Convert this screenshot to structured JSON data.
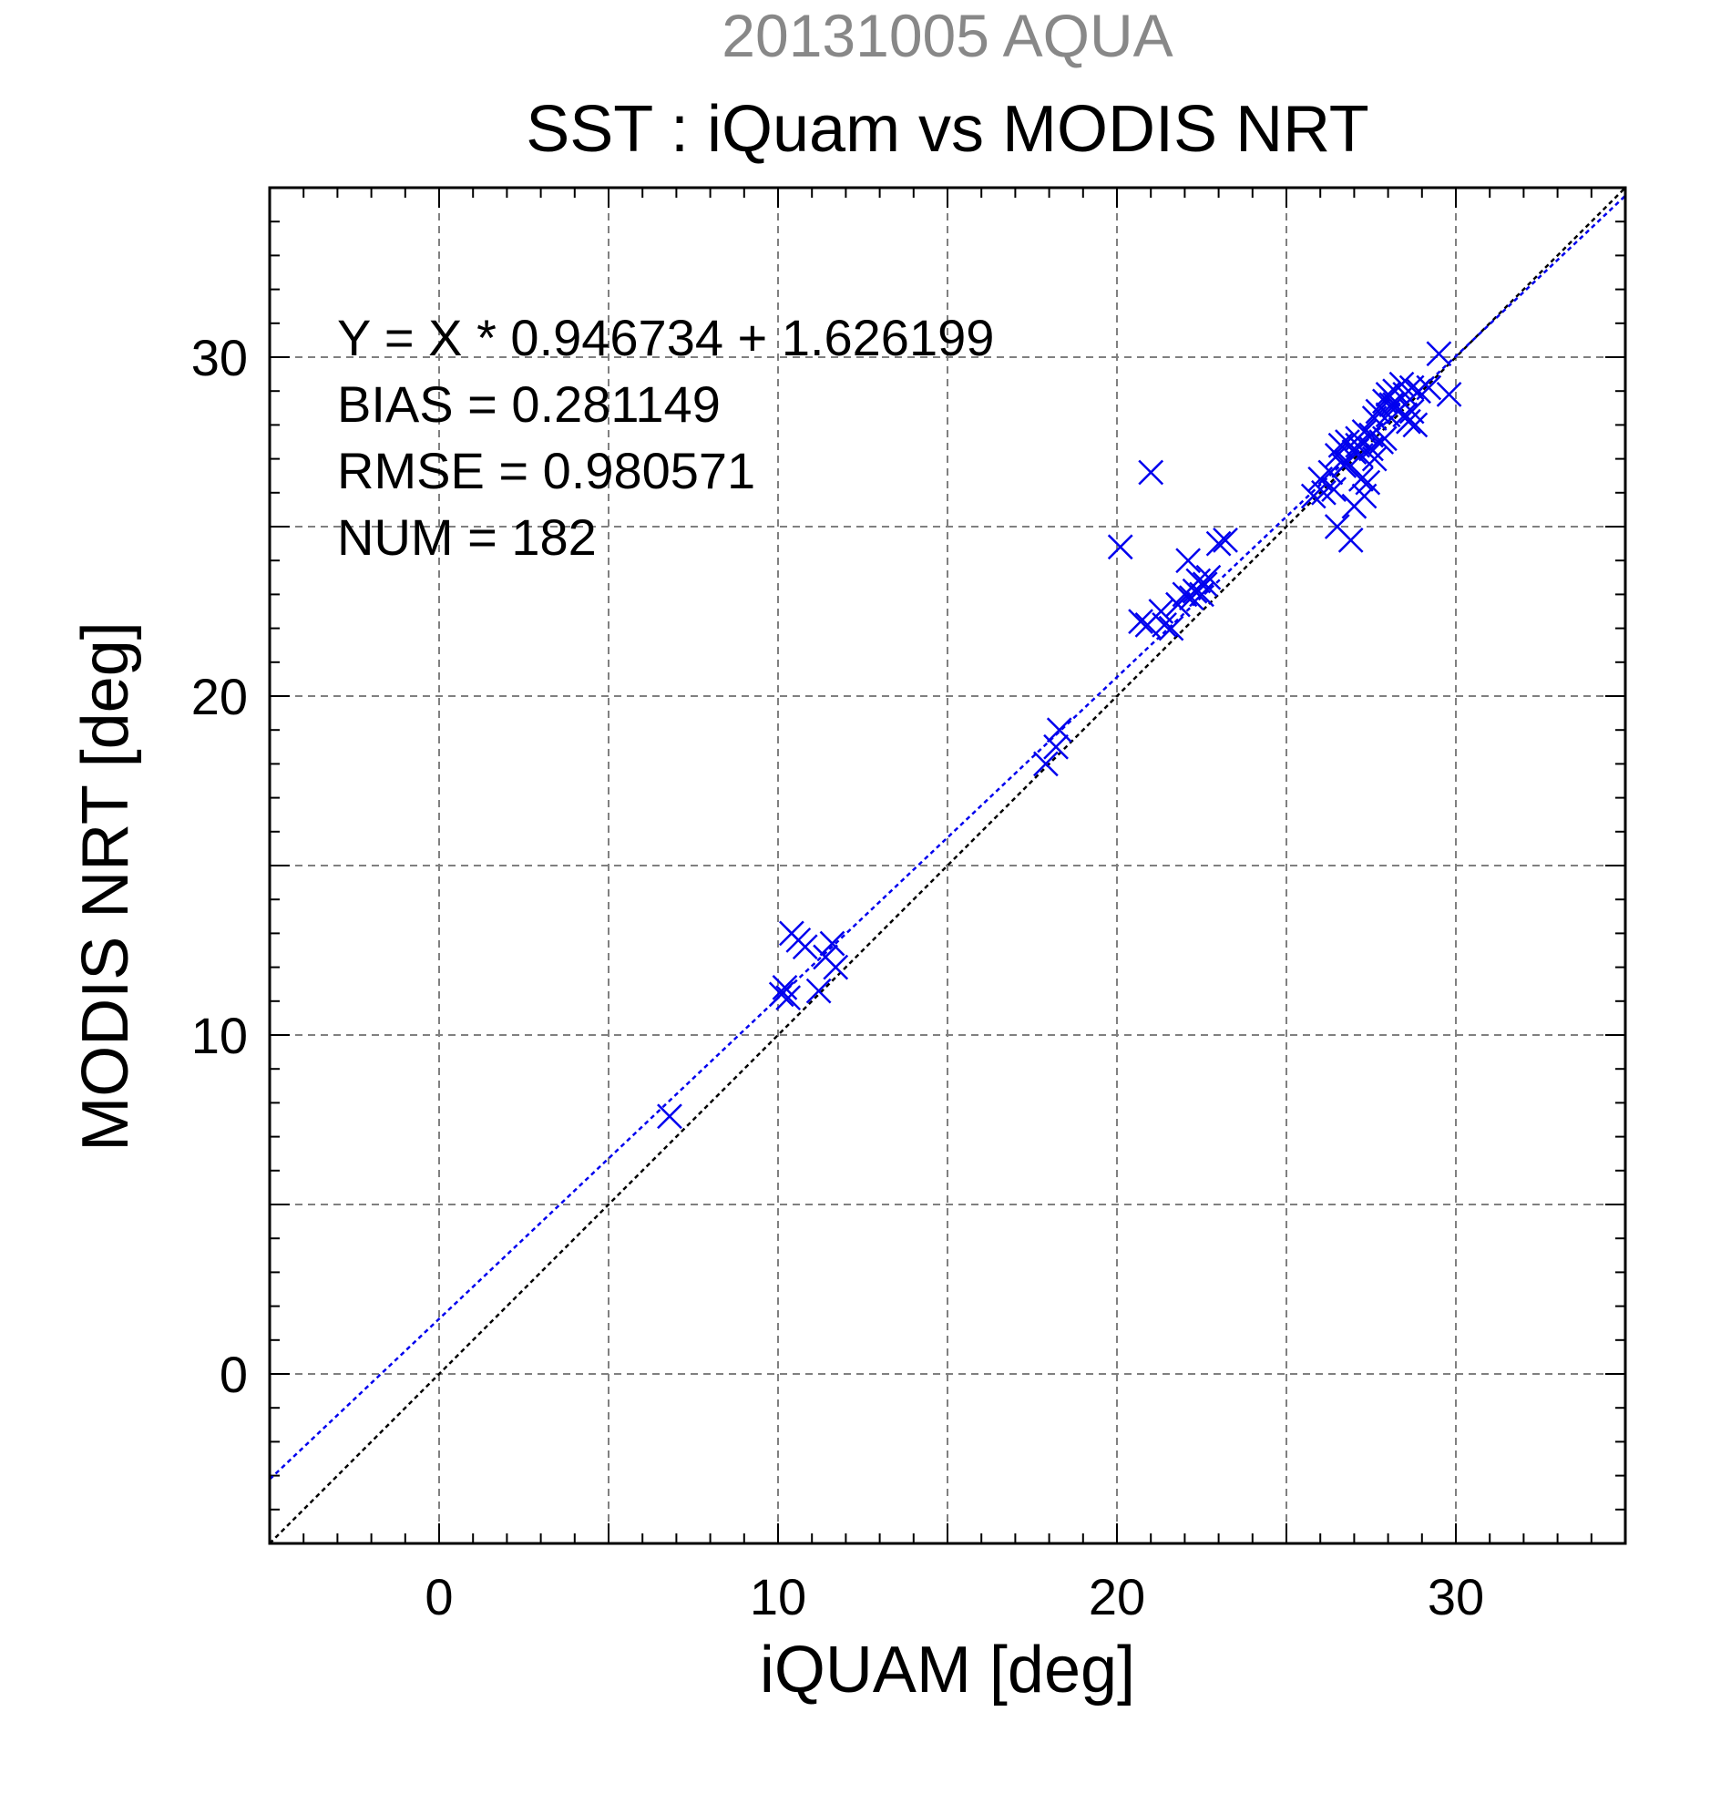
{
  "chart_data": {
    "type": "scatter",
    "supertitle": "20131005 AQUA",
    "title": "SST : iQuam vs MODIS NRT",
    "xlabel": "iQUAM [deg]",
    "ylabel": "MODIS NRT [deg]",
    "xlim": [
      -5,
      35
    ],
    "ylim": [
      -5,
      35
    ],
    "xticks": [
      0,
      10,
      20,
      30
    ],
    "yticks": [
      0,
      10,
      20,
      30
    ],
    "xtick_labels": [
      "0",
      "10",
      "20",
      "30"
    ],
    "ytick_labels": [
      "0",
      "10",
      "20",
      "30"
    ],
    "grid": true,
    "grid_step": 5,
    "stats": {
      "equation": "Y = X * 0.946734 + 1.626199",
      "bias": "BIAS = 0.281149",
      "rmse": "RMSE = 0.980571",
      "num": "NUM = 182"
    },
    "fit_line": {
      "slope": 0.946734,
      "intercept": 1.626199,
      "color": "#0000ee"
    },
    "identity_line": {
      "slope": 1,
      "intercept": 0,
      "color": "#000000"
    },
    "marker_color": "#0000ee",
    "supertitle_color": "#888888",
    "series": [
      {
        "marker": "x",
        "points": [
          [
            6.8,
            7.6
          ],
          [
            10.1,
            11.2
          ],
          [
            10.2,
            11.4
          ],
          [
            10.3,
            11.1
          ],
          [
            10.4,
            13.0
          ],
          [
            10.6,
            12.8
          ],
          [
            10.8,
            12.6
          ],
          [
            11.2,
            11.3
          ],
          [
            11.4,
            12.3
          ],
          [
            11.6,
            12.7
          ],
          [
            11.7,
            12.0
          ],
          [
            17.9,
            18.0
          ],
          [
            18.2,
            18.5
          ],
          [
            18.3,
            19.0
          ],
          [
            20.1,
            24.4
          ],
          [
            21.0,
            26.6
          ],
          [
            20.7,
            22.2
          ],
          [
            20.9,
            22.1
          ],
          [
            21.3,
            22.5
          ],
          [
            21.4,
            22.1
          ],
          [
            21.6,
            22.0
          ],
          [
            21.8,
            22.7
          ],
          [
            22.0,
            23.0
          ],
          [
            22.1,
            24.0
          ],
          [
            22.2,
            22.9
          ],
          [
            22.3,
            23.1
          ],
          [
            22.4,
            23.4
          ],
          [
            22.5,
            23.0
          ],
          [
            22.6,
            23.3
          ],
          [
            22.7,
            23.5
          ],
          [
            23.0,
            24.5
          ],
          [
            23.2,
            24.6
          ],
          [
            25.8,
            25.9
          ],
          [
            26.0,
            26.4
          ],
          [
            26.1,
            26.0
          ],
          [
            26.3,
            26.6
          ],
          [
            26.4,
            26.1
          ],
          [
            26.5,
            25.0
          ],
          [
            26.5,
            27.1
          ],
          [
            26.6,
            27.4
          ],
          [
            26.7,
            26.8
          ],
          [
            26.8,
            27.5
          ],
          [
            26.9,
            24.6
          ],
          [
            27.0,
            27.2
          ],
          [
            27.0,
            25.6
          ],
          [
            27.1,
            27.6
          ],
          [
            27.2,
            26.4
          ],
          [
            27.3,
            25.9
          ],
          [
            27.3,
            27.8
          ],
          [
            27.4,
            26.3
          ],
          [
            27.5,
            27.3
          ],
          [
            27.6,
            27.0
          ],
          [
            27.7,
            28.4
          ],
          [
            27.8,
            27.5
          ],
          [
            27.9,
            28.7
          ],
          [
            28.0,
            28.9
          ],
          [
            28.1,
            28.6
          ],
          [
            28.2,
            29.0
          ],
          [
            28.3,
            28.4
          ],
          [
            28.4,
            29.2
          ],
          [
            28.5,
            28.9
          ],
          [
            28.6,
            28.1
          ],
          [
            28.7,
            28.4
          ],
          [
            28.8,
            28.0
          ],
          [
            28.9,
            29.0
          ],
          [
            29.2,
            29.1
          ],
          [
            29.5,
            30.1
          ],
          [
            29.8,
            28.9
          ],
          [
            27.2,
            27.1
          ],
          [
            27.5,
            27.7
          ],
          [
            27.6,
            28.2
          ],
          [
            27.9,
            27.6
          ],
          [
            28.0,
            28.3
          ],
          [
            26.8,
            26.9
          ],
          [
            27.1,
            27.4
          ],
          [
            28.2,
            28.6
          ],
          [
            28.5,
            28.3
          ],
          [
            28.7,
            29.1
          ]
        ]
      }
    ]
  }
}
